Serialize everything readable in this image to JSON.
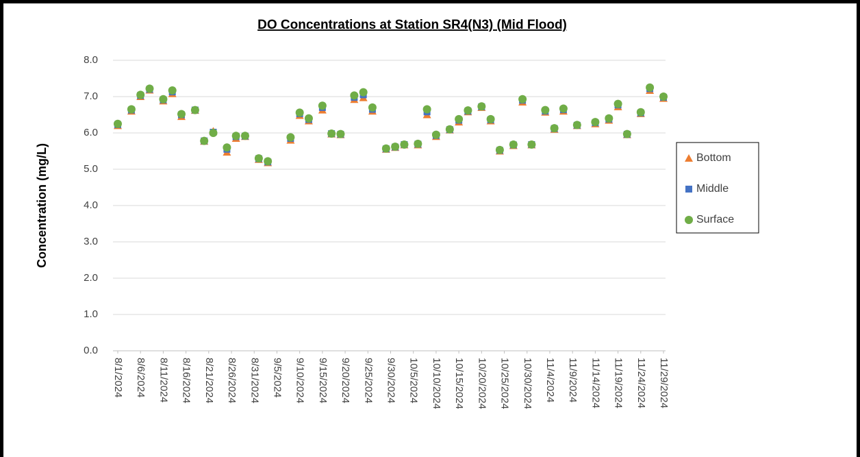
{
  "chart_data": {
    "type": "scatter",
    "title": "DO Concentrations at Station SR4(N3) (Mid Flood)",
    "y_label": "Concentration (mg/L)",
    "x": [
      "2024-08-01",
      "2024-08-04",
      "2024-08-06",
      "2024-08-08",
      "2024-08-11",
      "2024-08-13",
      "2024-08-15",
      "2024-08-18",
      "2024-08-20",
      "2024-08-22",
      "2024-08-25",
      "2024-08-27",
      "2024-08-29",
      "2024-09-01",
      "2024-09-03",
      "2024-09-08",
      "2024-09-10",
      "2024-09-12",
      "2024-09-15",
      "2024-09-17",
      "2024-09-19",
      "2024-09-22",
      "2024-09-24",
      "2024-09-26",
      "2024-09-29",
      "2024-10-01",
      "2024-10-03",
      "2024-10-06",
      "2024-10-08",
      "2024-10-10",
      "2024-10-13",
      "2024-10-15",
      "2024-10-17",
      "2024-10-20",
      "2024-10-22",
      "2024-10-24",
      "2024-10-27",
      "2024-10-29",
      "2024-10-31",
      "2024-11-03",
      "2024-11-05",
      "2024-11-07",
      "2024-11-10",
      "2024-11-14",
      "2024-11-17",
      "2024-11-19",
      "2024-11-21",
      "2024-11-24",
      "2024-11-26",
      "2024-11-29"
    ],
    "series": [
      {
        "name": "Bottom",
        "color": "#ED7D31",
        "marker": "triangle",
        "values": [
          6.2,
          6.6,
          7.0,
          7.18,
          6.88,
          7.08,
          6.45,
          6.62,
          5.77,
          6.05,
          5.47,
          5.85,
          5.9,
          5.27,
          5.18,
          5.8,
          6.48,
          6.33,
          6.63,
          5.97,
          5.95,
          6.92,
          6.97,
          6.6,
          5.55,
          5.6,
          5.67,
          5.67,
          6.5,
          5.9,
          6.08,
          6.3,
          6.58,
          6.7,
          6.33,
          5.5,
          5.65,
          6.85,
          5.67,
          6.57,
          6.1,
          6.6,
          6.2,
          6.25,
          6.35,
          6.72,
          5.95,
          6.53,
          7.17,
          6.95
        ]
      },
      {
        "name": "Middle",
        "color": "#4472C4",
        "marker": "square",
        "values": [
          6.23,
          6.63,
          7.03,
          7.2,
          6.91,
          7.13,
          6.5,
          6.63,
          5.78,
          6.02,
          5.55,
          5.9,
          5.91,
          5.29,
          5.2,
          5.85,
          6.53,
          6.37,
          6.7,
          5.98,
          5.96,
          6.98,
          7.05,
          6.65,
          5.56,
          5.61,
          5.68,
          5.69,
          6.58,
          5.93,
          6.09,
          6.35,
          6.6,
          6.72,
          6.36,
          5.52,
          5.67,
          6.9,
          5.68,
          6.6,
          6.12,
          6.64,
          6.21,
          6.28,
          6.38,
          6.77,
          5.96,
          6.55,
          7.22,
          6.98
        ]
      },
      {
        "name": "Surface",
        "color": "#70AD47",
        "marker": "circle",
        "values": [
          6.25,
          6.65,
          7.05,
          7.22,
          6.93,
          7.17,
          6.52,
          6.63,
          5.78,
          6.0,
          5.6,
          5.92,
          5.92,
          5.3,
          5.22,
          5.88,
          6.56,
          6.4,
          6.75,
          5.98,
          5.97,
          7.03,
          7.12,
          6.7,
          5.57,
          5.62,
          5.68,
          5.7,
          6.65,
          5.95,
          6.1,
          6.38,
          6.62,
          6.73,
          6.38,
          5.53,
          5.68,
          6.93,
          5.68,
          6.63,
          6.13,
          6.67,
          6.22,
          6.3,
          6.4,
          6.8,
          5.97,
          6.57,
          7.25,
          7.0
        ]
      }
    ],
    "xlim": [
      "2024-08-01",
      "2024-11-29"
    ],
    "xticks": [
      {
        "value": "2024-08-01",
        "label": "8/1/2024"
      },
      {
        "value": "2024-08-06",
        "label": "8/6/2024"
      },
      {
        "value": "2024-08-11",
        "label": "8/11/2024"
      },
      {
        "value": "2024-08-16",
        "label": "8/16/2024"
      },
      {
        "value": "2024-08-21",
        "label": "8/21/2024"
      },
      {
        "value": "2024-08-26",
        "label": "8/26/2024"
      },
      {
        "value": "2024-08-31",
        "label": "8/31/2024"
      },
      {
        "value": "2024-09-05",
        "label": "9/5/2024"
      },
      {
        "value": "2024-09-10",
        "label": "9/10/2024"
      },
      {
        "value": "2024-09-15",
        "label": "9/15/2024"
      },
      {
        "value": "2024-09-20",
        "label": "9/20/2024"
      },
      {
        "value": "2024-09-25",
        "label": "9/25/2024"
      },
      {
        "value": "2024-09-30",
        "label": "9/30/2024"
      },
      {
        "value": "2024-10-05",
        "label": "10/5/2024"
      },
      {
        "value": "2024-10-10",
        "label": "10/10/2024"
      },
      {
        "value": "2024-10-15",
        "label": "10/15/2024"
      },
      {
        "value": "2024-10-20",
        "label": "10/20/2024"
      },
      {
        "value": "2024-10-25",
        "label": "10/25/2024"
      },
      {
        "value": "2024-10-30",
        "label": "10/30/2024"
      },
      {
        "value": "2024-11-04",
        "label": "11/4/2024"
      },
      {
        "value": "2024-11-09",
        "label": "11/9/2024"
      },
      {
        "value": "2024-11-14",
        "label": "11/14/2024"
      },
      {
        "value": "2024-11-19",
        "label": "11/19/2024"
      },
      {
        "value": "2024-11-24",
        "label": "11/24/2024"
      },
      {
        "value": "2024-11-29",
        "label": "11/29/2024"
      }
    ],
    "ylim": [
      0,
      8
    ],
    "yticks": [
      {
        "value": 0,
        "label": "0.0"
      },
      {
        "value": 1,
        "label": "1.0"
      },
      {
        "value": 2,
        "label": "2.0"
      },
      {
        "value": 3,
        "label": "3.0"
      },
      {
        "value": 4,
        "label": "4.0"
      },
      {
        "value": 5,
        "label": "5.0"
      },
      {
        "value": 6,
        "label": "6.0"
      },
      {
        "value": 7,
        "label": "7.0"
      },
      {
        "value": 8,
        "label": "8.0"
      }
    ],
    "grid": true,
    "legend": "right"
  }
}
